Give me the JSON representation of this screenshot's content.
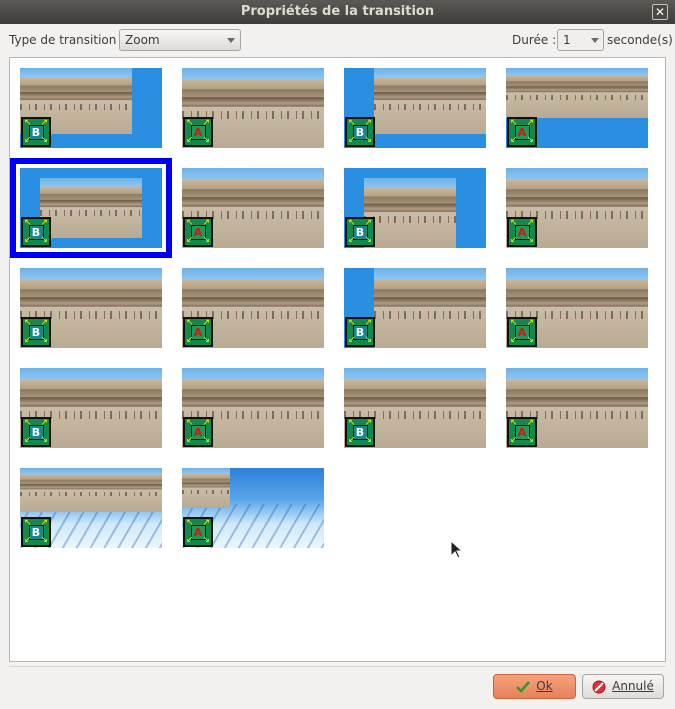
{
  "window": {
    "title": "Propriétés de la transition",
    "close_label": "✕"
  },
  "toolbar": {
    "type_label": "Type de transition :",
    "type_value": "Zoom",
    "duration_label": "Durée :",
    "duration_value": "1",
    "seconds_label": "seconde(s)"
  },
  "transitions": [
    {
      "letter": "B",
      "image": "photo"
    },
    {
      "letter": "A",
      "image": "photo"
    },
    {
      "letter": "B",
      "image": "photo"
    },
    {
      "letter": "A",
      "image": "photo"
    },
    {
      "letter": "B",
      "image": "photo",
      "selected": true
    },
    {
      "letter": "A",
      "image": "photo"
    },
    {
      "letter": "B",
      "image": "photo"
    },
    {
      "letter": "A",
      "image": "photo"
    },
    {
      "letter": "B",
      "image": "photo"
    },
    {
      "letter": "A",
      "image": "photo"
    },
    {
      "letter": "B",
      "image": "photo"
    },
    {
      "letter": "A",
      "image": "photo"
    },
    {
      "letter": "B",
      "image": "photo"
    },
    {
      "letter": "A",
      "image": "photo"
    },
    {
      "letter": "B",
      "image": "photo"
    },
    {
      "letter": "A",
      "image": "photo"
    },
    {
      "letter": "B",
      "image": "photo-penguin"
    },
    {
      "letter": "A",
      "image": "penguin-photo"
    }
  ],
  "buttons": {
    "ok": "Ok",
    "cancel": "Annulé"
  },
  "colors": {
    "selection": "#0000f0",
    "ok_bg": "#e8815a",
    "title_bg": "#3e3d39"
  }
}
